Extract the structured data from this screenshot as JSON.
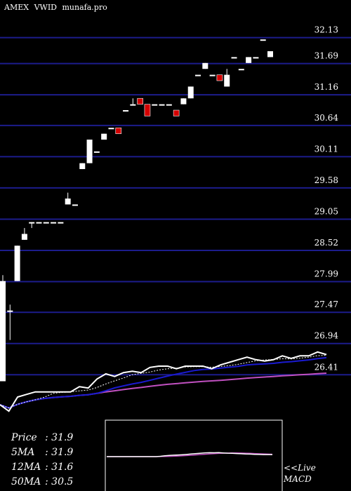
{
  "header": {
    "exchange": "AMEX",
    "symbol": "VWID",
    "site": "munafa.pro"
  },
  "colors": {
    "background": "#000000",
    "grid": "#1c1c8c",
    "bull_candle": "#ffffff",
    "bear_candle": "#d40000",
    "price_line": "#ffffff",
    "ma5_line": "#ffffff",
    "ma12_line": "#1a1ad0",
    "ma50_line": "#c050c0",
    "macd_line": "#ffffff",
    "signal_line": "#c050c0",
    "panel_border": "#ffffff"
  },
  "indicators": {
    "price_label": "Price",
    "price_value": "31.9",
    "ma5_label": "5MA",
    "ma5_value": "31.9",
    "ma12_label": "12MA",
    "ma12_value": "31.6",
    "ma50_label": "50MA",
    "ma50_value": "30.5",
    "live_label": "<<Live",
    "macd_label": "MACD"
  },
  "chart_data": {
    "type": "candlestick",
    "title": "AMEX VWID munafa.pro",
    "y_ticks": [
      "32.13",
      "31.69",
      "31.16",
      "30.64",
      "30.11",
      "29.58",
      "29.05",
      "28.52",
      "27.99",
      "27.47",
      "26.94",
      "26.41"
    ],
    "y_tick_values": [
      32.13,
      31.69,
      31.16,
      30.64,
      30.11,
      29.58,
      29.05,
      28.52,
      27.99,
      27.47,
      26.94,
      26.41
    ],
    "ylim": [
      26.33,
      32.4
    ],
    "candles": [
      {
        "o": 26.3,
        "c": 28.0,
        "h": 28.1,
        "l": 26.3
      },
      {
        "o": 27.5,
        "c": 27.5,
        "h": 27.6,
        "l": 27.0
      },
      {
        "o": 28.0,
        "c": 28.6,
        "h": 28.6,
        "l": 28.0
      },
      {
        "o": 28.7,
        "c": 28.8,
        "h": 28.9,
        "l": 28.7
      },
      {
        "o": 29.0,
        "c": 29.0,
        "h": 29.0,
        "l": 28.9
      },
      {
        "o": 29.0,
        "c": 29.0,
        "h": 29.0,
        "l": 29.0
      },
      {
        "o": 29.0,
        "c": 29.0,
        "h": 29.0,
        "l": 29.0
      },
      {
        "o": 29.0,
        "c": 29.0,
        "h": 29.0,
        "l": 29.0
      },
      {
        "o": 29.0,
        "c": 29.0,
        "h": 29.0,
        "l": 29.0
      },
      {
        "o": 29.3,
        "c": 29.4,
        "h": 29.5,
        "l": 29.3
      },
      {
        "o": 29.3,
        "c": 29.3,
        "h": 29.3,
        "l": 29.3
      },
      {
        "o": 29.9,
        "c": 30.0,
        "h": 30.0,
        "l": 29.9
      },
      {
        "o": 30.0,
        "c": 30.4,
        "h": 30.4,
        "l": 30.0
      },
      {
        "o": 30.2,
        "c": 30.2,
        "h": 30.2,
        "l": 30.2
      },
      {
        "o": 30.4,
        "c": 30.5,
        "h": 30.5,
        "l": 30.4
      },
      {
        "o": 30.6,
        "c": 30.6,
        "h": 30.6,
        "l": 30.6
      },
      {
        "o": 30.6,
        "c": 30.5,
        "h": 30.6,
        "l": 30.5
      },
      {
        "o": 30.9,
        "c": 30.9,
        "h": 30.9,
        "l": 30.9
      },
      {
        "o": 31.0,
        "c": 31.0,
        "h": 31.1,
        "l": 31.0
      },
      {
        "o": 31.1,
        "c": 31.0,
        "h": 31.1,
        "l": 31.0
      },
      {
        "o": 31.0,
        "c": 30.8,
        "h": 31.0,
        "l": 30.8
      },
      {
        "o": 31.0,
        "c": 31.0,
        "h": 31.0,
        "l": 31.0
      },
      {
        "o": 31.0,
        "c": 31.0,
        "h": 31.0,
        "l": 31.0
      },
      {
        "o": 31.0,
        "c": 31.0,
        "h": 31.0,
        "l": 31.0
      },
      {
        "o": 30.9,
        "c": 30.8,
        "h": 30.9,
        "l": 30.8
      },
      {
        "o": 31.0,
        "c": 31.1,
        "h": 31.1,
        "l": 31.0
      },
      {
        "o": 31.1,
        "c": 31.3,
        "h": 31.3,
        "l": 31.1
      },
      {
        "o": 31.5,
        "c": 31.5,
        "h": 31.5,
        "l": 31.5
      },
      {
        "o": 31.6,
        "c": 31.7,
        "h": 31.7,
        "l": 31.6
      },
      {
        "o": 31.5,
        "c": 31.5,
        "h": 31.5,
        "l": 31.5
      },
      {
        "o": 31.5,
        "c": 31.4,
        "h": 31.5,
        "l": 31.4
      },
      {
        "o": 31.3,
        "c": 31.5,
        "h": 31.6,
        "l": 31.3
      },
      {
        "o": 31.8,
        "c": 31.8,
        "h": 31.8,
        "l": 31.8
      },
      {
        "o": 31.6,
        "c": 31.6,
        "h": 31.6,
        "l": 31.6
      },
      {
        "o": 31.7,
        "c": 31.8,
        "h": 31.8,
        "l": 31.7
      },
      {
        "o": 31.8,
        "c": 31.8,
        "h": 31.8,
        "l": 31.8
      },
      {
        "o": 32.1,
        "c": 32.1,
        "h": 32.1,
        "l": 32.1
      },
      {
        "o": 31.8,
        "c": 31.9,
        "h": 31.9,
        "l": 31.8
      }
    ]
  }
}
